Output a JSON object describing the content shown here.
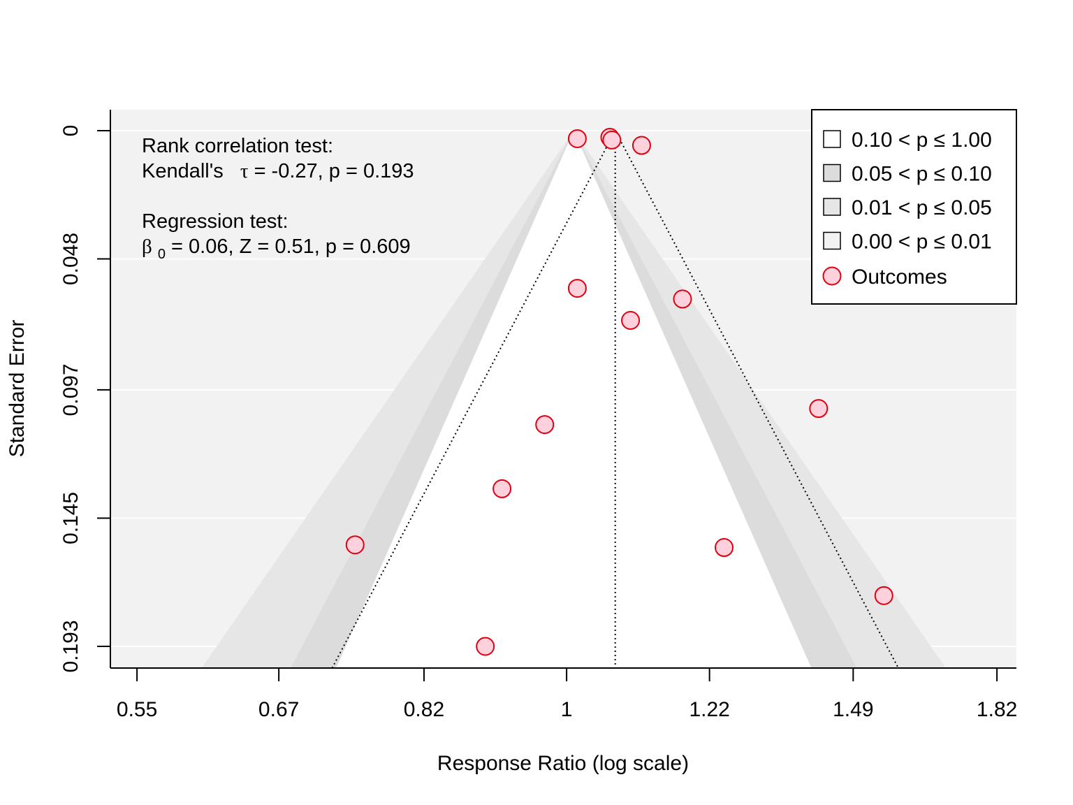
{
  "chart_data": {
    "type": "scatter",
    "subtype": "funnel",
    "title": "",
    "xlabel": "Response Ratio (log scale)",
    "ylabel": "Standard Error",
    "x_scale": "log",
    "x_ticks": [
      0.55,
      0.67,
      0.82,
      1,
      1.22,
      1.49,
      1.82
    ],
    "x_tick_labels": [
      "0.55",
      "0.67",
      "0.82",
      "1",
      "1.22",
      "1.49",
      "1.82"
    ],
    "y_ticks": [
      0,
      0.048,
      0.097,
      0.145,
      0.193
    ],
    "y_tick_labels": [
      "0",
      "0.048",
      "0.097",
      "0.145",
      "0.193"
    ],
    "ylim": [
      0,
      0.201
    ],
    "xlim": [
      0.53,
      1.87
    ],
    "y_reversed": true,
    "grid": true,
    "background": "#f2f2f2",
    "funnel_center": 1.07,
    "regression_intercept_x": 1.01,
    "contour_bands": [
      {
        "label": "0.10 < p ≤ 1.00",
        "z": 1.645,
        "fill": "#ffffff"
      },
      {
        "label": "0.05 < p ≤ 0.10",
        "z": 1.96,
        "fill": "#dcdcdc"
      },
      {
        "label": "0.01 < p ≤ 0.05",
        "z": 2.576,
        "fill": "#e6e6e6"
      },
      {
        "label": "0.00 < p ≤ 0.01",
        "fill": "#f2f2f2"
      }
    ],
    "points": [
      {
        "x": 1.015,
        "y": 0.003
      },
      {
        "x": 1.062,
        "y": 0.0025
      },
      {
        "x": 1.065,
        "y": 0.0035
      },
      {
        "x": 1.11,
        "y": 0.0055
      },
      {
        "x": 1.015,
        "y": 0.059
      },
      {
        "x": 1.175,
        "y": 0.063
      },
      {
        "x": 1.093,
        "y": 0.071
      },
      {
        "x": 0.97,
        "y": 0.11
      },
      {
        "x": 1.42,
        "y": 0.104
      },
      {
        "x": 0.914,
        "y": 0.134
      },
      {
        "x": 0.745,
        "y": 0.155
      },
      {
        "x": 1.245,
        "y": 0.156
      },
      {
        "x": 1.555,
        "y": 0.174
      },
      {
        "x": 0.893,
        "y": 0.193
      }
    ],
    "point_fill": "#ffd1dc",
    "point_stroke": "#e0000f",
    "annotations": {
      "rank_title": "Rank correlation test:",
      "rank_text_prefix": "Kendall's",
      "rank_symbol": "τ",
      "rank_text_rest": " = -0.27, p = 0.193",
      "reg_title": "Regression test:",
      "reg_symbol": "β",
      "reg_sub": "0",
      "reg_text_rest": " = 0.06, Z = 0.51, p = 0.609"
    },
    "legend": {
      "position": "top-right",
      "items": [
        {
          "label": "0.10 < p ≤ 1.00",
          "swatch": "#ffffff"
        },
        {
          "label": "0.05 < p ≤ 0.10",
          "swatch": "#dcdcdc"
        },
        {
          "label": "0.01 < p ≤ 0.05",
          "swatch": "#e6e6e6"
        },
        {
          "label": "0.00 < p ≤ 0.01",
          "swatch": "#f2f2f2"
        },
        {
          "label": "Outcomes",
          "swatch": "point"
        }
      ]
    }
  }
}
